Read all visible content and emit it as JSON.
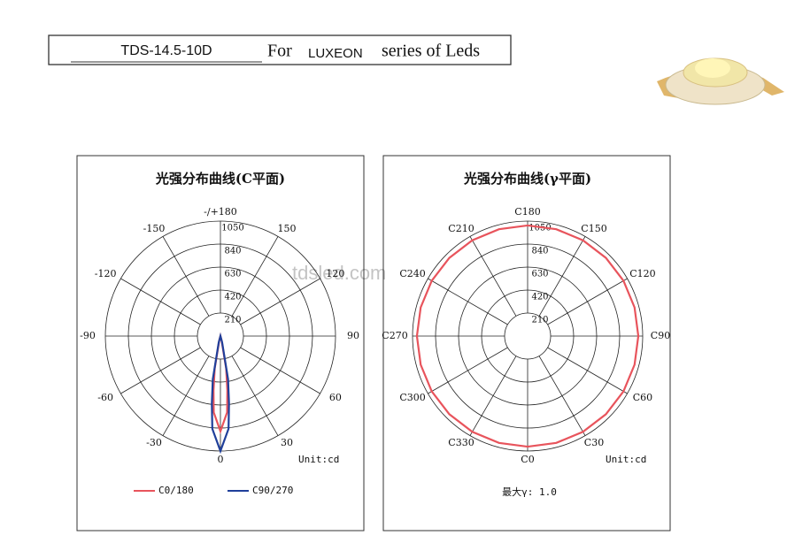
{
  "header": {
    "model": "TDS-14.5-10D",
    "prefix": "For",
    "brand": "LUXEON",
    "suffix": "series of Leds"
  },
  "watermark": "tdsled.com",
  "chart_data": [
    {
      "type": "polar",
      "title": "光强分布曲线(C平面)",
      "unit": "Unit:cd",
      "rlim": [
        0,
        1050
      ],
      "rticks": [
        210,
        420,
        630,
        840,
        1050
      ],
      "angular_ticks": [
        0,
        30,
        60,
        90,
        120,
        150,
        {
          "value": 180,
          "label": "-/+180"
        },
        -150,
        -120,
        -90,
        -60,
        -30
      ],
      "series": [
        {
          "name": "C0/180",
          "color": "#e8545c",
          "x": [
            -20,
            -15,
            -10,
            -7.25,
            -5,
            0,
            5,
            7.25,
            10,
            15,
            20
          ],
          "values": [
            0,
            40,
            300,
            500,
            700,
            870,
            700,
            500,
            300,
            40,
            0
          ]
        },
        {
          "name": "C90/270",
          "color": "#1f3f9a",
          "x": [
            -20,
            -15,
            -10,
            -7.25,
            -5,
            0,
            5,
            7.25,
            10,
            15,
            20
          ],
          "values": [
            0,
            60,
            400,
            620,
            850,
            1050,
            850,
            620,
            400,
            60,
            0
          ]
        }
      ]
    },
    {
      "type": "polar",
      "title": "光强分布曲线(γ平面)",
      "unit": "Unit:cd",
      "note": "最大γ: 1.0",
      "rlim": [
        0,
        1050
      ],
      "rticks": [
        210,
        420,
        630,
        840,
        1050
      ],
      "angular_ticks": [
        {
          "value": 0,
          "label": "C0"
        },
        {
          "value": 30,
          "label": "C30"
        },
        {
          "value": 60,
          "label": "C60"
        },
        {
          "value": 90,
          "label": "C90"
        },
        {
          "value": 120,
          "label": "C120"
        },
        {
          "value": 150,
          "label": "C150"
        },
        {
          "value": 180,
          "label": "C180"
        },
        {
          "value": 210,
          "label": "C210"
        },
        {
          "value": 240,
          "label": "C240"
        },
        {
          "value": 270,
          "label": "C270"
        },
        {
          "value": 300,
          "label": "C300"
        },
        {
          "value": 330,
          "label": "C330"
        }
      ],
      "series": [
        {
          "color": "#e8545c",
          "x": [
            0,
            15,
            30,
            45,
            60,
            75,
            90,
            105,
            120,
            135,
            150,
            165,
            180,
            195,
            210,
            225,
            240,
            255,
            270,
            285,
            300,
            315,
            330,
            345
          ],
          "values": [
            1010,
            1010,
            1010,
            1010,
            1010,
            1010,
            1010,
            1010,
            1010,
            1010,
            1010,
            1010,
            1010,
            1010,
            1010,
            1010,
            1010,
            1010,
            1010,
            1010,
            1010,
            1010,
            1010,
            1010
          ]
        }
      ]
    }
  ]
}
